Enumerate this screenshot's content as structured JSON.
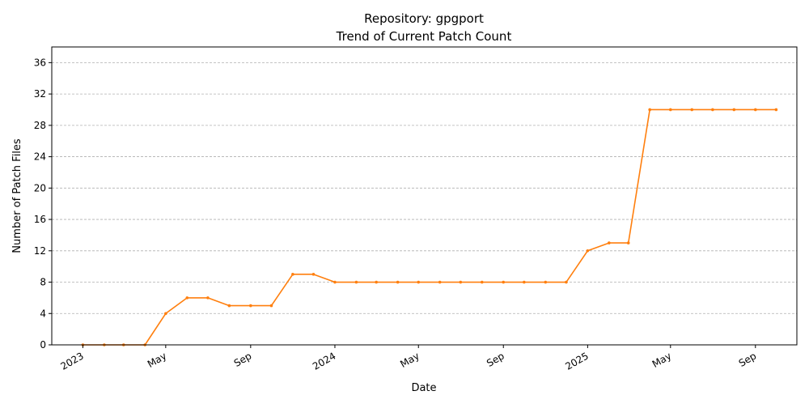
{
  "chart_data": {
    "type": "line",
    "title": "Repository: gpgport",
    "subtitle": "Trend of Current Patch Count",
    "xlabel": "Date",
    "ylabel": "Number of Patch Files",
    "ylim": [
      0,
      38
    ],
    "yticks": [
      0,
      4,
      8,
      12,
      16,
      20,
      24,
      28,
      32,
      36
    ],
    "xlim": [
      "2022-11-17",
      "2025-10-31"
    ],
    "xticks": [
      {
        "date": "2023-01-01",
        "label": "2023"
      },
      {
        "date": "2023-05-01",
        "label": "May"
      },
      {
        "date": "2023-09-01",
        "label": "Sep"
      },
      {
        "date": "2024-01-01",
        "label": "2024"
      },
      {
        "date": "2024-05-01",
        "label": "May"
      },
      {
        "date": "2024-09-01",
        "label": "Sep"
      },
      {
        "date": "2025-01-01",
        "label": "2025"
      },
      {
        "date": "2025-05-01",
        "label": "May"
      },
      {
        "date": "2025-09-01",
        "label": "Sep"
      }
    ],
    "grid": "horizontal-dashed",
    "color": "#ff7f0e",
    "x": [
      "2023-01-01",
      "2023-02-01",
      "2023-03-01",
      "2023-04-01",
      "2023-05-01",
      "2023-06-01",
      "2023-07-01",
      "2023-08-01",
      "2023-09-01",
      "2023-10-01",
      "2023-11-01",
      "2023-12-01",
      "2024-01-01",
      "2024-02-01",
      "2024-03-01",
      "2024-04-01",
      "2024-05-01",
      "2024-06-01",
      "2024-07-01",
      "2024-08-01",
      "2024-09-01",
      "2024-10-01",
      "2024-11-01",
      "2024-12-01",
      "2025-01-01",
      "2025-02-01",
      "2025-03-01",
      "2025-04-01",
      "2025-05-01",
      "2025-06-01",
      "2025-07-01",
      "2025-08-01",
      "2025-09-01",
      "2025-10-01"
    ],
    "values": [
      0,
      0,
      0,
      0,
      4,
      6,
      6,
      5,
      5,
      5,
      9,
      9,
      8,
      8,
      8,
      8,
      8,
      8,
      8,
      8,
      8,
      8,
      8,
      8,
      12,
      13,
      13,
      30,
      30,
      30,
      30,
      30,
      30,
      30
    ]
  }
}
